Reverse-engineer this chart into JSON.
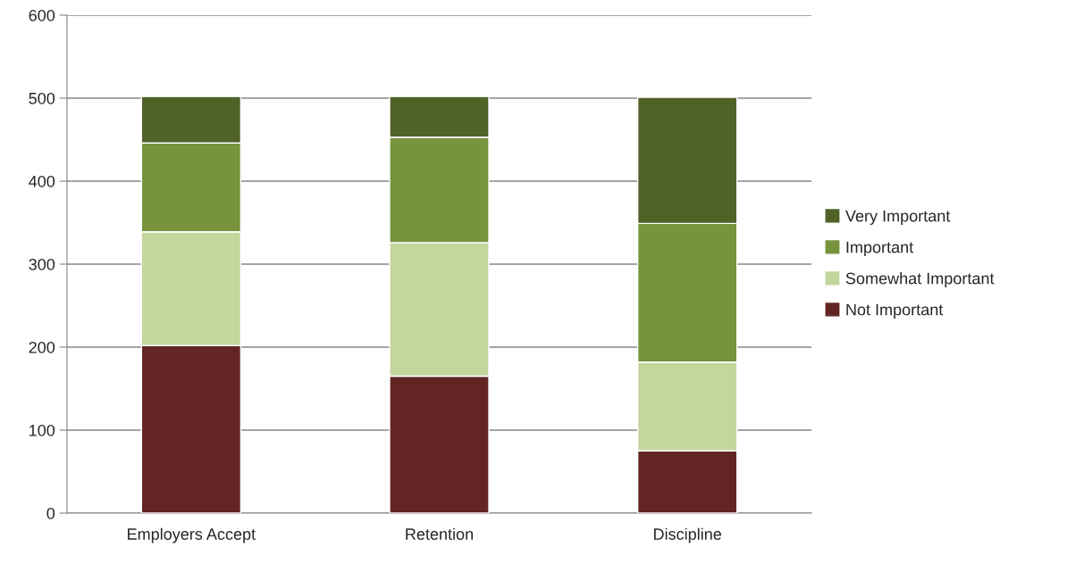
{
  "chart_data": {
    "type": "bar",
    "stacked": true,
    "categories": [
      "Employers Accept",
      "Retention",
      "Discipline"
    ],
    "series": [
      {
        "name": "Not Important",
        "color": "#632523",
        "values": [
          202,
          165,
          75
        ]
      },
      {
        "name": "Somewhat Important",
        "color": "#c3d69b",
        "values": [
          137,
          161,
          107
        ]
      },
      {
        "name": "Important",
        "color": "#77933c",
        "values": [
          107,
          127,
          167
        ]
      },
      {
        "name": "Very Important",
        "color": "#4f6228",
        "values": [
          56,
          49,
          152
        ]
      }
    ],
    "ylim": [
      0,
      600
    ],
    "yticks": [
      0,
      100,
      200,
      300,
      400,
      500,
      600
    ],
    "grid": "y",
    "legend": "right"
  }
}
